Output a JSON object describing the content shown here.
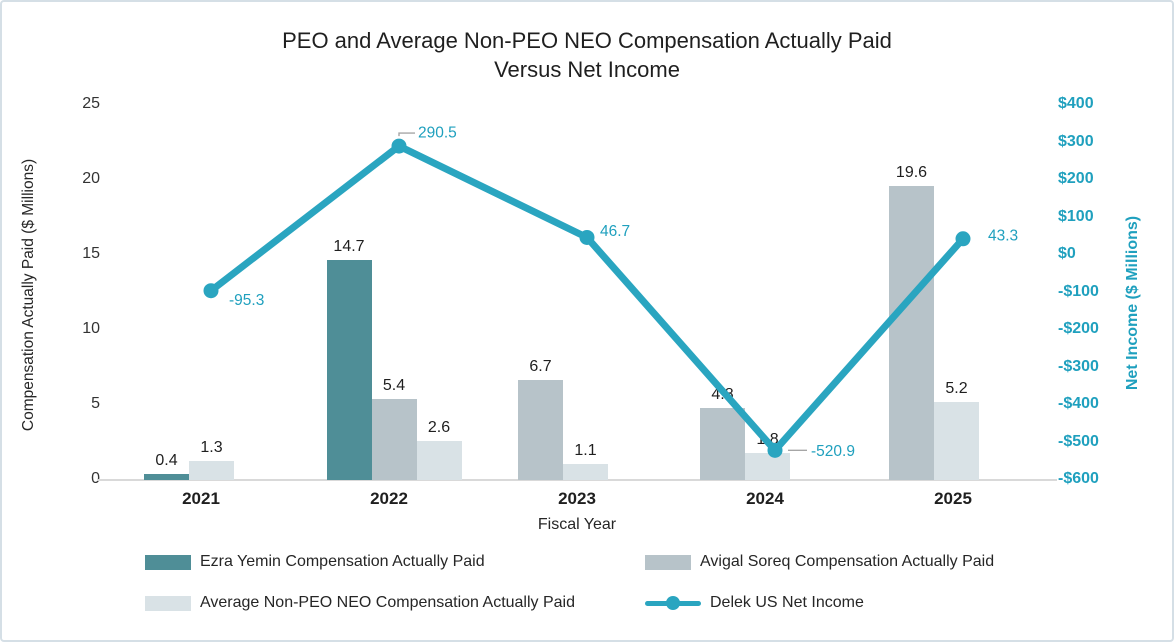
{
  "page": {
    "background": "#ffffff",
    "border_color": "#d5dfe6"
  },
  "chart_data": {
    "type": "combo-bar-line",
    "title_line1": "PEO and Average Non-PEO NEO Compensation Actually Paid",
    "title_line2": "Versus Net Income",
    "xlabel": "Fiscal Year",
    "categories": [
      "2021",
      "2022",
      "2023",
      "2024",
      "2025"
    ],
    "bar_series": [
      {
        "name": "Ezra Yemin Compensation Actually Paid",
        "color": "#4f8e97",
        "values": [
          0.4,
          14.7,
          null,
          null,
          null
        ]
      },
      {
        "name": "Avigal Soreq Compensation Actually Paid",
        "color": "#b7c3c9",
        "values": [
          null,
          5.4,
          6.7,
          4.8,
          19.6
        ]
      },
      {
        "name": "Average Non-PEO NEO Compensation Actually Paid",
        "color": "#d9e2e6",
        "values": [
          1.3,
          2.6,
          1.1,
          1.8,
          5.2
        ]
      }
    ],
    "line_series": {
      "name": "Delek US Net Income",
      "color": "#2aa5c0",
      "values": [
        -95.3,
        290.5,
        46.7,
        -520.9,
        43.3
      ],
      "point_labels": [
        "-95.3",
        "290.5",
        "46.7",
        "-520.9",
        "43.3"
      ]
    },
    "left_axis": {
      "label": "Compensation Actually Paid ($ Millions)",
      "min": 0,
      "max": 25,
      "ticks": [
        "25",
        "20",
        "15",
        "10",
        "5",
        "0"
      ]
    },
    "right_axis": {
      "label": "Net Income ($ Millions)",
      "min": -600,
      "max": 400,
      "color": "#1fa0be",
      "ticks": [
        "$400",
        "$300",
        "$200",
        "$100",
        "$0",
        "-$100",
        "-$200",
        "-$300",
        "-$400",
        "-$500",
        "-$600"
      ]
    },
    "axis_line_color": "#d9d9d9",
    "leader_line_color": "#a6a6a6",
    "grid": false,
    "legend_position": "bottom"
  }
}
